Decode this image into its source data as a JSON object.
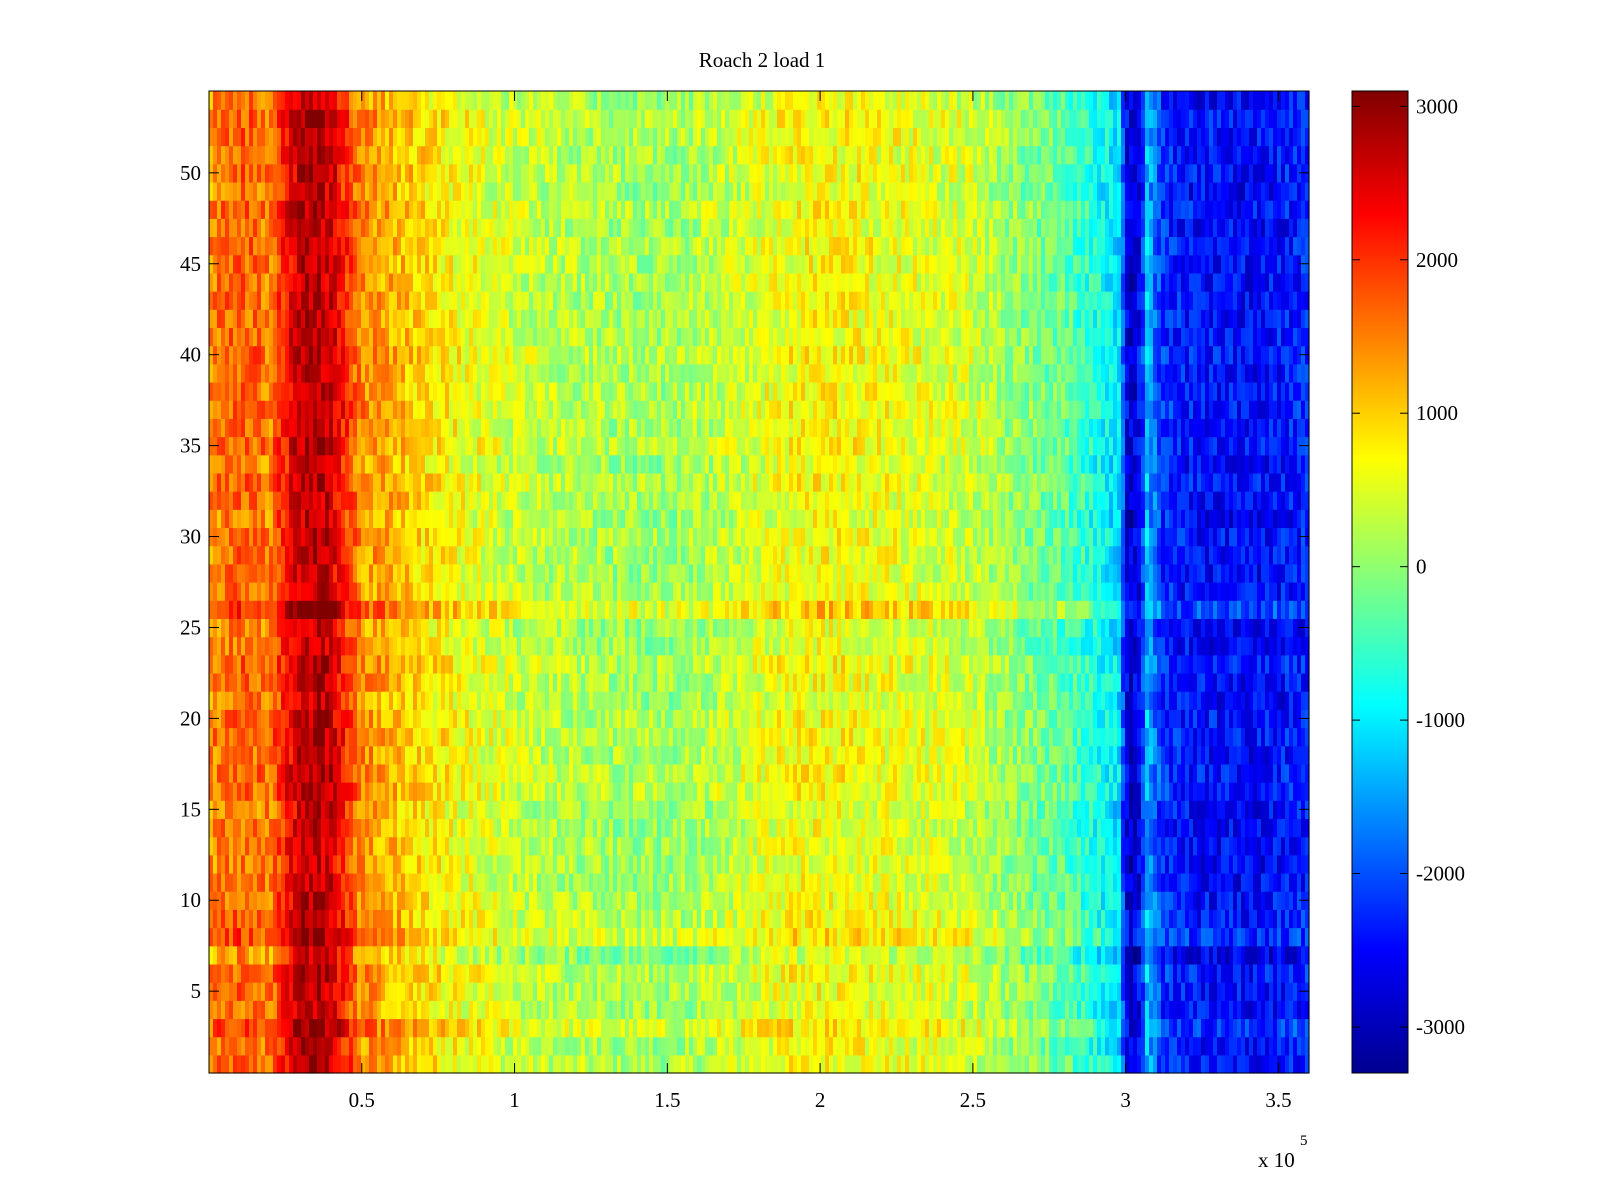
{
  "chart_data": {
    "type": "heatmap",
    "title": "Roach 2 load 1",
    "xlabel": "",
    "ylabel": "",
    "x_exponent_label": "x 10",
    "x_exponent": "5",
    "xlim": [
      0,
      3.6
    ],
    "ylim": [
      0.5,
      54.5
    ],
    "x_ticks": [
      0.5,
      1,
      1.5,
      2,
      2.5,
      3,
      3.5
    ],
    "x_tick_labels": [
      "0.5",
      "1",
      "1.5",
      "2",
      "2.5",
      "3",
      "3.5"
    ],
    "y_ticks": [
      5,
      10,
      15,
      20,
      25,
      30,
      35,
      40,
      45,
      50
    ],
    "y_tick_labels": [
      "5",
      "10",
      "15",
      "20",
      "25",
      "30",
      "35",
      "40",
      "45",
      "50"
    ],
    "rows": 54,
    "colormap": "jet",
    "colorbar": {
      "clim": [
        -3300,
        3100
      ],
      "ticks": [
        3000,
        2000,
        1000,
        0,
        -1000,
        -2000,
        -3000
      ],
      "tick_labels": [
        "3000",
        "2000",
        "1000",
        "0",
        "-1000",
        "-2000",
        "-3000"
      ]
    },
    "column_profile": {
      "x": [
        0.0,
        0.05,
        0.1,
        0.2,
        0.25,
        0.3,
        0.35,
        0.4,
        0.5,
        0.6,
        0.7,
        0.8,
        1.0,
        1.3,
        1.5,
        1.6,
        1.75,
        1.85,
        2.0,
        2.2,
        2.5,
        2.6,
        2.8,
        2.9,
        2.98,
        3.0,
        3.02,
        3.05,
        3.07,
        3.12,
        3.2,
        3.4,
        3.6
      ],
      "value": [
        1400,
        1600,
        1700,
        1500,
        2200,
        2700,
        2800,
        2600,
        1400,
        1200,
        900,
        700,
        350,
        150,
        100,
        200,
        400,
        600,
        700,
        600,
        400,
        100,
        -300,
        -700,
        -1100,
        -2600,
        -2800,
        -2500,
        -1300,
        -2200,
        -2400,
        -2500,
        -2300
      ]
    },
    "noise_amplitude": 450,
    "row_offsets": [
      {
        "row": 26,
        "value": 400
      },
      {
        "row": 8,
        "value": 300
      },
      {
        "row": 7,
        "value": -200
      },
      {
        "row": 3,
        "value": 200
      }
    ]
  }
}
